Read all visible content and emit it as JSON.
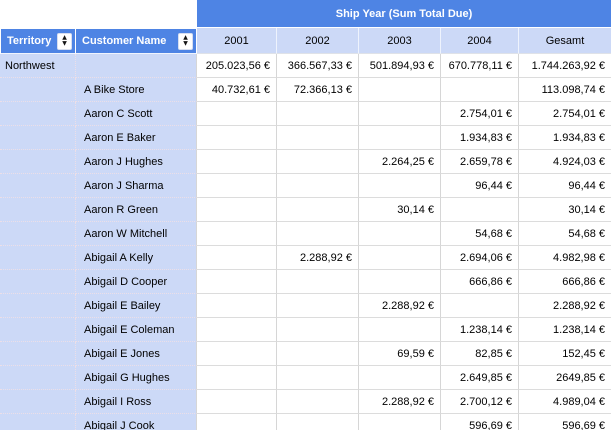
{
  "table": {
    "top_header": "Ship Year (Sum Total Due)",
    "columns": {
      "territory": "Territory",
      "customer": "Customer Name",
      "years": [
        "2001",
        "2002",
        "2003",
        "2004",
        "Gesamt"
      ]
    },
    "rows": [
      {
        "territory": "Northwest",
        "customer": "",
        "values": [
          "205.023,56 €",
          "366.567,33 €",
          "501.894,93 €",
          "670.778,11 €",
          "1.744.263,92 €"
        ]
      },
      {
        "territory": "",
        "customer": "A Bike Store",
        "values": [
          "40.732,61 €",
          "72.366,13 €",
          "",
          "",
          "113.098,74 €"
        ]
      },
      {
        "territory": "",
        "customer": "Aaron C Scott",
        "values": [
          "",
          "",
          "",
          "2.754,01 €",
          "2.754,01 €"
        ]
      },
      {
        "territory": "",
        "customer": "Aaron E Baker",
        "values": [
          "",
          "",
          "",
          "1.934,83 €",
          "1.934,83 €"
        ]
      },
      {
        "territory": "",
        "customer": "Aaron J Hughes",
        "values": [
          "",
          "",
          "2.264,25 €",
          "2.659,78 €",
          "4.924,03 €"
        ]
      },
      {
        "territory": "",
        "customer": "Aaron J Sharma",
        "values": [
          "",
          "",
          "",
          "96,44 €",
          "96,44 €"
        ]
      },
      {
        "territory": "",
        "customer": "Aaron R Green",
        "values": [
          "",
          "",
          "30,14 €",
          "",
          "30,14 €"
        ]
      },
      {
        "territory": "",
        "customer": "Aaron W Mitchell",
        "values": [
          "",
          "",
          "",
          "54,68 €",
          "54,68 €"
        ]
      },
      {
        "territory": "",
        "customer": "Abigail A Kelly",
        "values": [
          "",
          "2.288,92 €",
          "",
          "2.694,06 €",
          "4.982,98 €"
        ]
      },
      {
        "territory": "",
        "customer": "Abigail D Cooper",
        "values": [
          "",
          "",
          "",
          "666,86 €",
          "666,86 €"
        ]
      },
      {
        "territory": "",
        "customer": "Abigail E Bailey",
        "values": [
          "",
          "",
          "2.288,92 €",
          "",
          "2.288,92 €"
        ]
      },
      {
        "territory": "",
        "customer": "Abigail E Coleman",
        "values": [
          "",
          "",
          "",
          "1.238,14 €",
          "1.238,14 €"
        ]
      },
      {
        "territory": "",
        "customer": "Abigail E Jones",
        "values": [
          "",
          "",
          "69,59 €",
          "82,85 €",
          "152,45 €"
        ]
      },
      {
        "territory": "",
        "customer": "Abigail G Hughes",
        "values": [
          "",
          "",
          "",
          "2.649,85 €",
          "2649,85 €"
        ]
      },
      {
        "territory": "",
        "customer": "Abigail I Ross",
        "values": [
          "",
          "",
          "2.288,92 €",
          "2.700,12 €",
          "4.989,04 €"
        ]
      },
      {
        "territory": "",
        "customer": "Abigail J Cook",
        "values": [
          "",
          "",
          "",
          "596,69 €",
          "596,69 €"
        ]
      }
    ]
  },
  "icons": {
    "sort_up": "▲",
    "sort_down": "▼"
  },
  "colors": {
    "header_blue": "#4e84e4",
    "band_light_blue": "#ccd9f7",
    "grid_line": "#d6d6d6",
    "header_text": "#ffffff",
    "cell_text": "#000000"
  }
}
